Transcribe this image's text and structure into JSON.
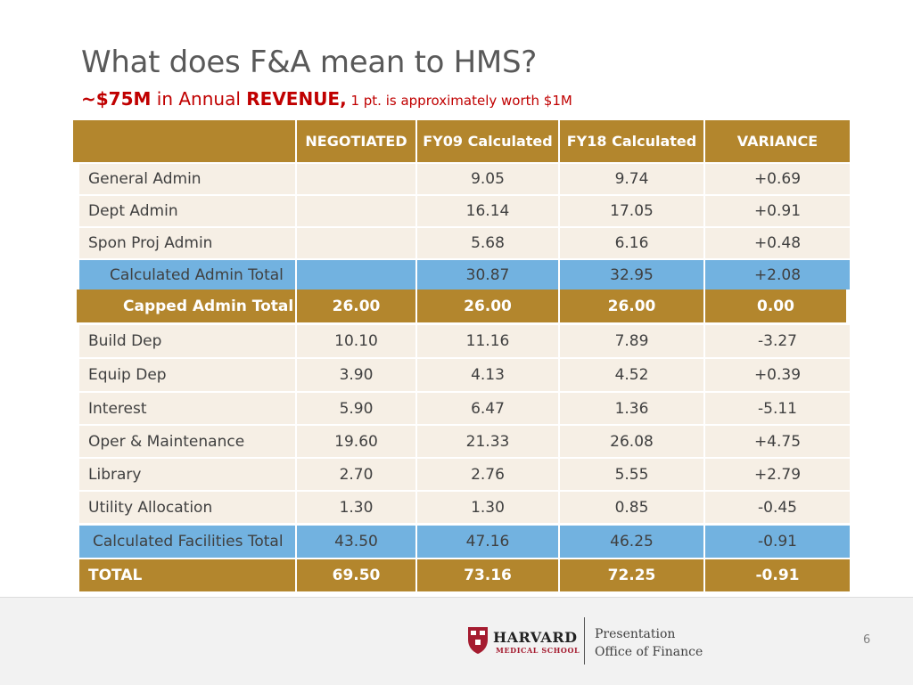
{
  "title": "What does F&A mean to HMS?",
  "subtitle": {
    "amount": "~$75M",
    "mid": " in Annual ",
    "revenue": "REVENUE,",
    "note": " 1 pt. is approximately worth $1M"
  },
  "table": {
    "headers": [
      "",
      "NEGOTIATED",
      "FY09 Calculated",
      "FY18 Calculated",
      "VARIANCE"
    ],
    "rows": [
      {
        "label": "General Admin",
        "negotiated": "",
        "fy09": "9.05",
        "fy18": "9.74",
        "variance": "+0.69"
      },
      {
        "label": "Dept Admin",
        "negotiated": "",
        "fy09": "16.14",
        "fy18": "17.05",
        "variance": "+0.91"
      },
      {
        "label": "Spon Proj Admin",
        "negotiated": "",
        "fy09": "5.68",
        "fy18": "6.16",
        "variance": "+0.48"
      },
      {
        "label": "Calculated Admin Total",
        "negotiated": "",
        "fy09": "30.87",
        "fy18": "32.95",
        "variance": "+2.08"
      },
      {
        "label": "Capped Admin Total",
        "negotiated": "26.00",
        "fy09": "26.00",
        "fy18": "26.00",
        "variance": "0.00"
      },
      {
        "label": "Build Dep",
        "negotiated": "10.10",
        "fy09": "11.16",
        "fy18": "7.89",
        "variance": "-3.27"
      },
      {
        "label": "Equip Dep",
        "negotiated": "3.90",
        "fy09": "4.13",
        "fy18": "4.52",
        "variance": "+0.39"
      },
      {
        "label": "Interest",
        "negotiated": "5.90",
        "fy09": "6.47",
        "fy18": "1.36",
        "variance": "-5.11"
      },
      {
        "label": "Oper & Maintenance",
        "negotiated": "19.60",
        "fy09": "21.33",
        "fy18": "26.08",
        "variance": "+4.75"
      },
      {
        "label": "Library",
        "negotiated": "2.70",
        "fy09": "2.76",
        "fy18": "5.55",
        "variance": "+2.79"
      },
      {
        "label": "Utility Allocation",
        "negotiated": "1.30",
        "fy09": "1.30",
        "fy18": "0.85",
        "variance": "-0.45"
      },
      {
        "label": "Calculated Facilities Total",
        "negotiated": "43.50",
        "fy09": "47.16",
        "fy18": "46.25",
        "variance": "-0.91"
      },
      {
        "label": "TOTAL",
        "negotiated": "69.50",
        "fy09": "73.16",
        "fy18": "72.25",
        "variance": "-0.91"
      }
    ]
  },
  "colors": {
    "title": "#595959",
    "accent_red": "#c00000",
    "gold": "#b3862d",
    "light_row": "#f6efe5",
    "blue_row": "#72b2e0"
  },
  "footer": {
    "logo_main": "HARVARD",
    "logo_sub": "MEDICAL SCHOOL",
    "line1": "Presentation",
    "line2": "Office of Finance",
    "page_number": "6"
  }
}
